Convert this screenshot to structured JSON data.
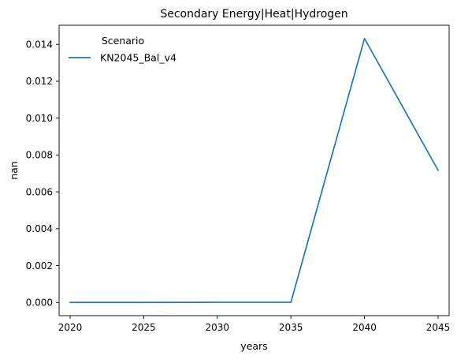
{
  "chart_data": {
    "type": "line",
    "title": "Secondary Energy|Heat|Hydrogen",
    "xlabel": "years",
    "ylabel": "nan",
    "x": [
      2020,
      2025,
      2030,
      2035,
      2040,
      2045
    ],
    "series": [
      {
        "name": "KN2045_Bal_v4",
        "color": "#1f77b4",
        "values": [
          0.0,
          0.0,
          1e-05,
          1e-05,
          0.01432,
          0.00717
        ]
      }
    ],
    "xticks": [
      2020,
      2025,
      2030,
      2035,
      2040,
      2045
    ],
    "xtick_labels": [
      "2020",
      "2025",
      "2030",
      "2035",
      "2040",
      "2045"
    ],
    "yticks": [
      0.0,
      0.002,
      0.004,
      0.006,
      0.008,
      0.01,
      0.012,
      0.014
    ],
    "ytick_labels": [
      "0.000",
      "0.002",
      "0.004",
      "0.006",
      "0.008",
      "0.010",
      "0.012",
      "0.014"
    ],
    "xlim": [
      2019.25,
      2045.75
    ],
    "ylim": [
      -0.000716,
      0.015037
    ],
    "grid": false,
    "legend": {
      "title": "Scenario",
      "placement": "top-left"
    }
  }
}
